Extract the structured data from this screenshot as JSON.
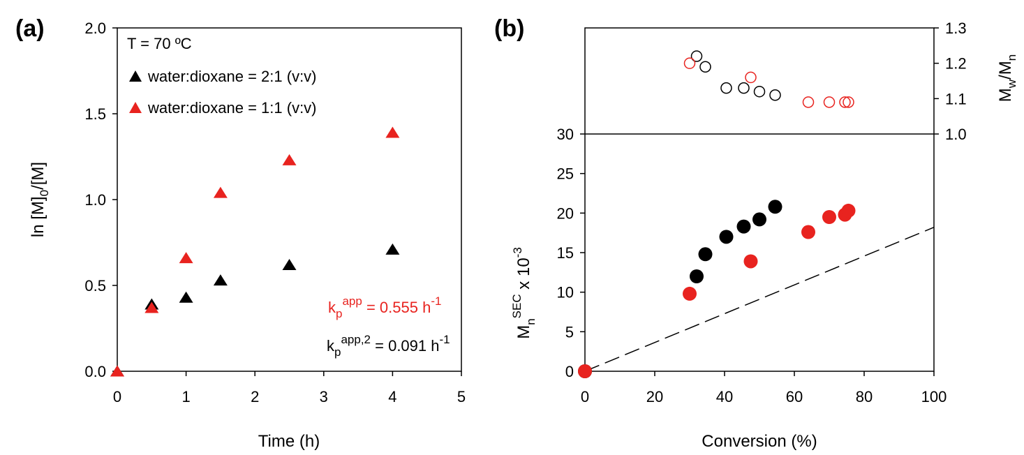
{
  "chart_data": [
    {
      "type": "scatter",
      "panel": "(a)",
      "xlabel": "Time (h)",
      "ylabel": {
        "prefix": "ln [M]",
        "sub": "0",
        "suffix": "/[M]"
      },
      "xlim": [
        0,
        5
      ],
      "ylim": [
        0,
        2.0
      ],
      "xticks": [
        0,
        1,
        2,
        3,
        4,
        5
      ],
      "yticks": [
        "0.0",
        "0.5",
        "1.0",
        "1.5",
        "2.0"
      ],
      "annotation_temp": "T = 70 ºC",
      "series": [
        {
          "name": "water:dioxane = 2:1 (v:v)",
          "color": "#000000",
          "marker": "triangle",
          "x": [
            0,
            0.5,
            1,
            1.5,
            2.5,
            4
          ],
          "y": [
            0,
            0.39,
            0.43,
            0.53,
            0.62,
            0.71
          ]
        },
        {
          "name": "water:dioxane = 1:1 (v:v)",
          "color": "#e8231f",
          "marker": "triangle",
          "x": [
            0,
            0.5,
            1,
            1.5,
            2.5,
            4
          ],
          "y": [
            0,
            0.37,
            0.66,
            1.04,
            1.23,
            1.39
          ]
        }
      ],
      "rate_labels": [
        {
          "base": "k",
          "sub": "p",
          "sup": "app",
          "text": " = 0.555 h",
          "unit_sup": "-1",
          "color": "#e8231f"
        },
        {
          "base": "k",
          "sub": "p",
          "sup": "app,2",
          "text": " = 0.091 h",
          "unit_sup": "-1",
          "color": "#000000"
        }
      ],
      "grid": false
    },
    {
      "type": "scatter",
      "panel": "(b)",
      "xlabel": "Conversion (%)",
      "ylabel": {
        "prefix": "M",
        "sub": "n",
        "sup": "SEC",
        "suffix": " x 10",
        "suffix_sup": "-3"
      },
      "y2label": {
        "prefix": "M",
        "sub1": "w",
        "mid": "/M",
        "sub2": "n"
      },
      "xlim": [
        0,
        100
      ],
      "ylim": [
        0,
        30
      ],
      "y2lim": [
        1.0,
        1.3
      ],
      "xticks": [
        0,
        20,
        40,
        60,
        80,
        100
      ],
      "yticks": [
        0,
        5,
        10,
        15,
        20,
        25,
        30
      ],
      "y2ticks": [
        "1.0",
        "1.1",
        "1.2",
        "1.3"
      ],
      "mn_series": [
        {
          "color": "#000000",
          "marker": "filled-circle",
          "x": [
            0,
            32,
            34.5,
            40.5,
            45.5,
            50,
            54.5
          ],
          "y": [
            0,
            12,
            14.8,
            17,
            18.3,
            19.2,
            20.8
          ]
        },
        {
          "color": "#e8231f",
          "marker": "filled-circle",
          "x": [
            0,
            30,
            47.5,
            64,
            70,
            74.5,
            75.5
          ],
          "y": [
            0,
            9.8,
            13.9,
            17.6,
            19.5,
            19.8,
            20.3
          ]
        }
      ],
      "dispersity_series": [
        {
          "color": "#000000",
          "marker": "open-circle",
          "x": [
            32,
            34.5,
            40.5,
            45.5,
            50,
            54.5
          ],
          "y": [
            1.22,
            1.19,
            1.13,
            1.13,
            1.12,
            1.11
          ]
        },
        {
          "color": "#e8231f",
          "marker": "open-circle",
          "x": [
            30,
            47.5,
            64,
            70,
            74.5,
            75.5
          ],
          "y": [
            1.2,
            1.16,
            1.09,
            1.09,
            1.09,
            1.09
          ]
        }
      ],
      "theoretical_line": {
        "style": "dashed",
        "x": [
          0,
          100
        ],
        "y": [
          0,
          18.2
        ]
      },
      "grid": false
    }
  ]
}
